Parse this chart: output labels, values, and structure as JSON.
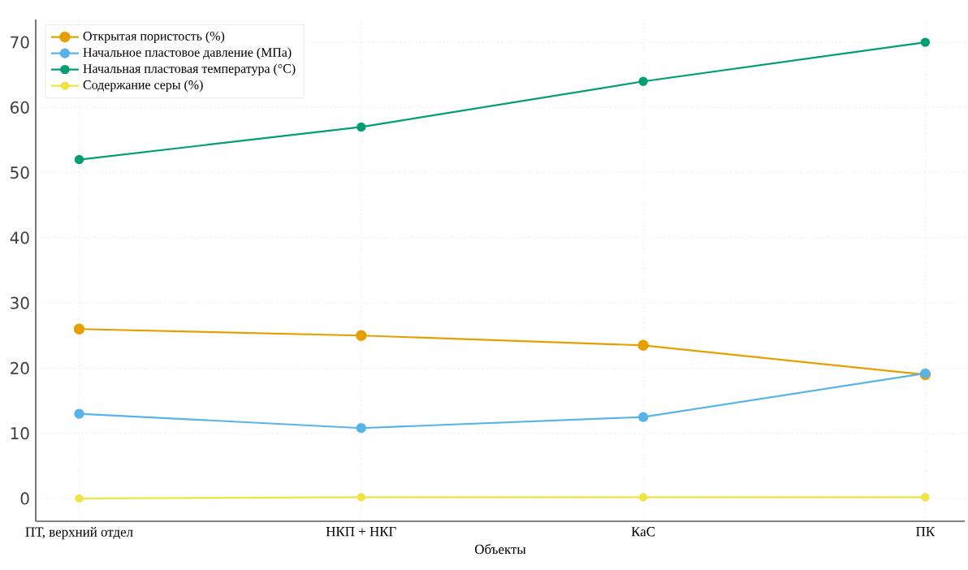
{
  "chart_data": {
    "type": "line",
    "xlabel": "Объекты",
    "categories": [
      "ПТ, верхний отдел",
      "НКП  + НКГ",
      "КаС",
      "ПК"
    ],
    "series": [
      {
        "name": "Открытая пористость (%)",
        "color": "#e69f00",
        "values": [
          26,
          25,
          23.5,
          19
        ]
      },
      {
        "name": "Начальное пластовое давление (МПа)",
        "color": "#56b4e9",
        "values": [
          13,
          10.8,
          12.5,
          19.2
        ]
      },
      {
        "name": "Начальная пластовая температура (°C)",
        "color": "#009e73",
        "values": [
          52,
          57,
          64,
          70
        ]
      },
      {
        "name": "Содержание серы (%)",
        "color": "#f0e442",
        "values": [
          0,
          0.2,
          0.2,
          0.2
        ]
      }
    ],
    "ylim": [
      -3.5,
      73.5
    ],
    "yticks": [
      0,
      10,
      20,
      30,
      40,
      50,
      60,
      70
    ],
    "grid": true,
    "legend": "top left",
    "marker": "circle",
    "line_style": "solid"
  }
}
